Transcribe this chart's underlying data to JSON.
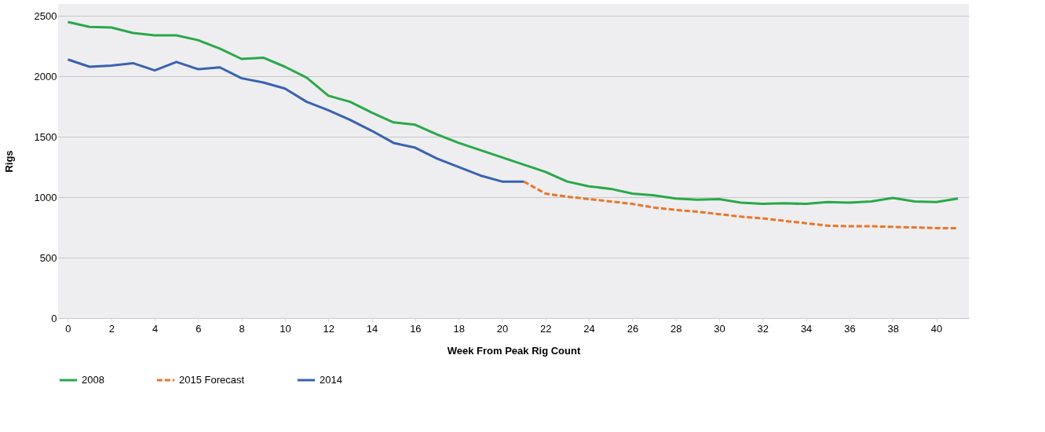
{
  "chart_data": {
    "type": "line",
    "xlabel": "Week From Peak Rig Count",
    "ylabel": "Rigs",
    "x": [
      0,
      1,
      2,
      3,
      4,
      5,
      6,
      7,
      8,
      9,
      10,
      11,
      12,
      13,
      14,
      15,
      16,
      17,
      18,
      19,
      20,
      21,
      22,
      23,
      24,
      25,
      26,
      27,
      28,
      29,
      30,
      31,
      32,
      33,
      34,
      35,
      36,
      37,
      38,
      39,
      40,
      41
    ],
    "xlim": [
      -0.45,
      41.5
    ],
    "xticks": [
      0,
      2,
      4,
      6,
      8,
      10,
      12,
      14,
      16,
      18,
      20,
      22,
      24,
      26,
      28,
      30,
      32,
      34,
      36,
      38,
      40
    ],
    "ylim": [
      0,
      2600
    ],
    "yticks": [
      0,
      500,
      1000,
      1500,
      2000,
      2500
    ],
    "grid": "y",
    "legend": "bottom",
    "series": [
      {
        "name": "2008",
        "color": "#2aa84a",
        "line_style": "solid",
        "values": [
          2450,
          2410,
          2405,
          2360,
          2340,
          2340,
          2300,
          2230,
          2145,
          2155,
          2080,
          1990,
          1840,
          1790,
          1700,
          1620,
          1600,
          1520,
          1450,
          1390,
          1330,
          1270,
          1210,
          1130,
          1090,
          1070,
          1030,
          1015,
          990,
          980,
          985,
          955,
          945,
          950,
          945,
          960,
          955,
          965,
          995,
          965,
          960,
          990
        ]
      },
      {
        "name": "2015 Forecast",
        "color": "#e8762c",
        "line_style": "dashed",
        "values": [
          null,
          null,
          null,
          null,
          null,
          null,
          null,
          null,
          null,
          null,
          null,
          null,
          null,
          null,
          null,
          null,
          null,
          null,
          null,
          null,
          null,
          1130,
          1030,
          1005,
          985,
          965,
          945,
          915,
          895,
          880,
          860,
          840,
          825,
          805,
          785,
          765,
          760,
          760,
          755,
          750,
          745,
          745
        ]
      },
      {
        "name": "2014",
        "color": "#3a62b0",
        "line_style": "solid",
        "values": [
          2140,
          2080,
          2090,
          2110,
          2050,
          2120,
          2060,
          2075,
          1985,
          1950,
          1900,
          1790,
          1720,
          1640,
          1550,
          1450,
          1410,
          1320,
          1250,
          1180,
          1130,
          1130,
          null,
          null,
          null,
          null,
          null,
          null,
          null,
          null,
          null,
          null,
          null,
          null,
          null,
          null,
          null,
          null,
          null,
          null,
          null,
          null
        ]
      }
    ]
  }
}
